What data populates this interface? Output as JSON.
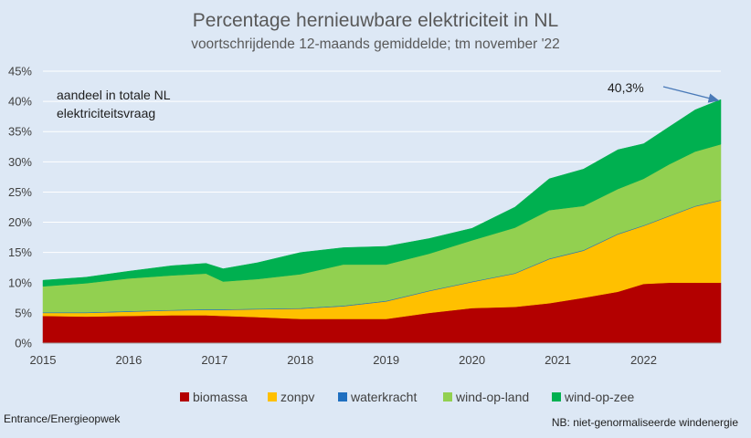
{
  "chart_data": {
    "type": "area",
    "stacked": true,
    "title": "Percentage hernieuwbare elektriciteit in NL",
    "subtitle": "voortschrijdende 12-maands gemiddelde; tm november '22",
    "xlabel": "",
    "ylabel": "",
    "xlim": [
      2015,
      2022.9
    ],
    "ylim": [
      0,
      45
    ],
    "grid": true,
    "legend_position": "bottom",
    "x_ticks": [
      "2015",
      "2016",
      "2017",
      "2018",
      "2019",
      "2020",
      "2021",
      "2022"
    ],
    "y_ticks": [
      "0%",
      "5%",
      "10%",
      "15%",
      "20%",
      "25%",
      "30%",
      "35%",
      "40%",
      "45%"
    ],
    "x": [
      2015.0,
      2015.5,
      2016.0,
      2016.5,
      2016.9,
      2017.1,
      2017.5,
      2018.0,
      2018.5,
      2019.0,
      2019.5,
      2020.0,
      2020.5,
      2020.9,
      2021.3,
      2021.7,
      2022.0,
      2022.3,
      2022.6,
      2022.9
    ],
    "series": [
      {
        "name": "biomassa",
        "color": "#b30000",
        "values": [
          4.5,
          4.4,
          4.5,
          4.6,
          4.6,
          4.5,
          4.3,
          4.0,
          4.0,
          4.0,
          5.0,
          5.8,
          6.0,
          6.6,
          7.5,
          8.5,
          9.8,
          10.0,
          10.0,
          10.0
        ]
      },
      {
        "name": "zonpv",
        "color": "#ffc000",
        "values": [
          0.5,
          0.6,
          0.7,
          0.8,
          0.9,
          1.0,
          1.3,
          1.7,
          2.1,
          2.9,
          3.6,
          4.3,
          5.5,
          7.3,
          7.8,
          9.5,
          9.6,
          11.0,
          12.6,
          13.6
        ]
      },
      {
        "name": "waterkracht",
        "color": "#1f6fc0",
        "values": [
          0.1,
          0.1,
          0.1,
          0.1,
          0.1,
          0.1,
          0.1,
          0.1,
          0.1,
          0.1,
          0.1,
          0.1,
          0.1,
          0.1,
          0.1,
          0.1,
          0.1,
          0.1,
          0.1,
          0.1
        ]
      },
      {
        "name": "wind-op-land",
        "color": "#92d050",
        "values": [
          4.3,
          4.8,
          5.4,
          5.7,
          5.9,
          4.6,
          4.9,
          5.6,
          6.8,
          6.0,
          6.1,
          6.8,
          7.5,
          8.0,
          7.3,
          7.4,
          7.7,
          8.5,
          9.0,
          9.2
        ]
      },
      {
        "name": "wind-op-zee",
        "color": "#00b050",
        "values": [
          1.0,
          1.0,
          1.2,
          1.6,
          1.7,
          2.1,
          2.7,
          3.6,
          2.8,
          3.0,
          2.5,
          2.0,
          3.4,
          5.2,
          6.1,
          6.5,
          5.8,
          6.2,
          6.9,
          7.4
        ]
      }
    ],
    "annotations": [
      {
        "text": "aandeel in totale NL",
        "kind": "note"
      },
      {
        "text": "elektriciteitsvraag",
        "kind": "note"
      },
      {
        "text": "40,3%",
        "kind": "arrow-label",
        "target_x": 2022.9,
        "target_y": 40.3
      }
    ]
  },
  "footer": {
    "source": "Entrance/Energieopwek",
    "note": "NB: niet-genormaliseerde windenergie"
  }
}
